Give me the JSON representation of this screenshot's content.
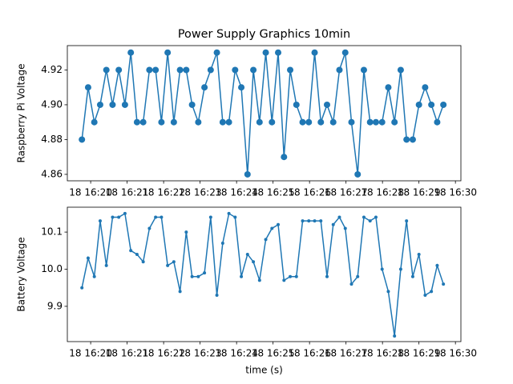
{
  "chart_data": [
    {
      "type": "line",
      "title": "Power Supply Graphics 10min",
      "ylabel": "Raspberry Pi Voltage",
      "color": "#1f77b4",
      "marker_size": 4,
      "x": [
        19.76,
        19.93,
        20.1,
        20.26,
        20.43,
        20.6,
        20.77,
        20.94,
        21.1,
        21.27,
        21.44,
        21.61,
        21.78,
        21.94,
        22.11,
        22.28,
        22.45,
        22.62,
        22.78,
        22.95,
        23.12,
        23.29,
        23.46,
        23.62,
        23.79,
        23.96,
        24.13,
        24.3,
        24.46,
        24.63,
        24.8,
        24.97,
        25.14,
        25.3,
        25.47,
        25.64,
        25.81,
        25.98,
        26.14,
        26.31,
        26.48,
        26.65,
        26.82,
        26.98,
        27.15,
        27.32,
        27.49,
        27.66,
        27.82,
        27.99,
        28.16,
        28.33,
        28.5,
        28.66,
        28.83,
        29.0,
        29.17,
        29.34,
        29.5,
        29.67
      ],
      "values": [
        4.88,
        4.91,
        4.89,
        4.9,
        4.92,
        4.9,
        4.92,
        4.9,
        4.93,
        4.89,
        4.89,
        4.92,
        4.92,
        4.89,
        4.93,
        4.89,
        4.92,
        4.92,
        4.9,
        4.89,
        4.91,
        4.92,
        4.93,
        4.89,
        4.89,
        4.92,
        4.91,
        4.86,
        4.92,
        4.89,
        4.93,
        4.89,
        4.93,
        4.87,
        4.92,
        4.9,
        4.89,
        4.89,
        4.93,
        4.89,
        4.9,
        4.89,
        4.92,
        4.93,
        4.89,
        4.86,
        4.92,
        4.89,
        4.89,
        4.89,
        4.91,
        4.89,
        4.92,
        4.88,
        4.88,
        4.9,
        4.91,
        4.9,
        4.89,
        4.9
      ],
      "xlim": [
        19.36,
        30.15
      ],
      "xticks": [
        {
          "value": 20,
          "label": "18 16:20"
        },
        {
          "value": 21,
          "label": "18 16:21"
        },
        {
          "value": 22,
          "label": "18 16:22"
        },
        {
          "value": 23,
          "label": "18 16:23"
        },
        {
          "value": 24,
          "label": "18 16:24"
        },
        {
          "value": 25,
          "label": "18 16:25"
        },
        {
          "value": 26,
          "label": "18 16:26"
        },
        {
          "value": 27,
          "label": "18 16:27"
        },
        {
          "value": 28,
          "label": "18 16:28"
        },
        {
          "value": 29,
          "label": "18 16:29"
        },
        {
          "value": 30,
          "label": "18 16:30"
        }
      ],
      "ylim": [
        4.8563,
        4.934
      ],
      "yticks": [
        4.86,
        4.88,
        {
          "value": 4.9,
          "label": "4.90"
        },
        4.92
      ]
    },
    {
      "type": "line",
      "ylabel": "Battery Voltage",
      "xlabel": "time (s)",
      "color": "#1f77b4",
      "marker_size": 2,
      "x": [
        19.76,
        19.93,
        20.1,
        20.26,
        20.43,
        20.6,
        20.77,
        20.94,
        21.1,
        21.27,
        21.44,
        21.61,
        21.78,
        21.94,
        22.11,
        22.28,
        22.45,
        22.62,
        22.78,
        22.95,
        23.12,
        23.29,
        23.46,
        23.62,
        23.79,
        23.96,
        24.13,
        24.3,
        24.46,
        24.63,
        24.8,
        24.97,
        25.14,
        25.3,
        25.47,
        25.64,
        25.81,
        25.98,
        26.14,
        26.31,
        26.48,
        26.65,
        26.82,
        26.98,
        27.15,
        27.32,
        27.49,
        27.66,
        27.82,
        27.99,
        28.16,
        28.33,
        28.5,
        28.66,
        28.83,
        29.0,
        29.17,
        29.34,
        29.5,
        29.67
      ],
      "values": [
        9.95,
        10.03,
        9.98,
        10.13,
        10.01,
        10.14,
        10.14,
        10.15,
        10.05,
        10.04,
        10.02,
        10.11,
        10.14,
        10.14,
        10.01,
        10.02,
        9.94,
        10.1,
        9.98,
        9.98,
        9.99,
        10.14,
        9.93,
        10.07,
        10.15,
        10.14,
        9.98,
        10.04,
        10.02,
        9.97,
        10.08,
        10.11,
        10.12,
        9.97,
        9.98,
        9.98,
        10.13,
        10.13,
        10.13,
        10.13,
        9.98,
        10.12,
        10.14,
        10.11,
        9.96,
        9.98,
        10.14,
        10.13,
        10.14,
        10.0,
        9.94,
        9.82,
        10.0,
        10.13,
        9.98,
        10.04,
        9.93,
        9.94,
        10.01,
        9.96
      ],
      "xlim": [
        19.36,
        30.15
      ],
      "xticks": [
        {
          "value": 20,
          "label": "18 16:20"
        },
        {
          "value": 21,
          "label": "18 16:21"
        },
        {
          "value": 22,
          "label": "18 16:22"
        },
        {
          "value": 23,
          "label": "18 16:23"
        },
        {
          "value": 24,
          "label": "18 16:24"
        },
        {
          "value": 25,
          "label": "18 16:25"
        },
        {
          "value": 26,
          "label": "18 16:26"
        },
        {
          "value": 27,
          "label": "18 16:27"
        },
        {
          "value": 28,
          "label": "18 16:28"
        },
        {
          "value": 29,
          "label": "18 16:29"
        },
        {
          "value": 30,
          "label": "18 16:30"
        }
      ],
      "ylim": [
        9.805,
        10.167
      ],
      "yticks": [
        9.9,
        {
          "value": 10,
          "label": "10.0"
        },
        10.1
      ]
    }
  ]
}
